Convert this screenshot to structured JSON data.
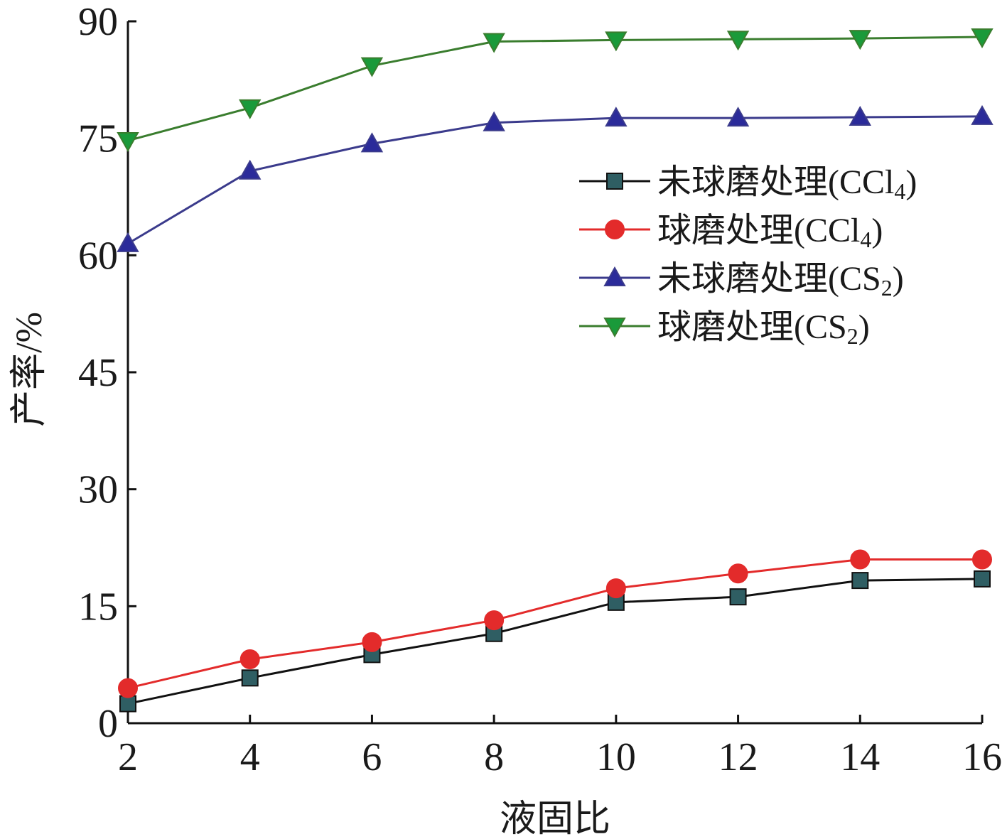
{
  "chart_data": {
    "type": "line",
    "xlabel": "液固比",
    "ylabel": "产率/%",
    "xlim": [
      2,
      16
    ],
    "ylim": [
      0,
      90
    ],
    "x_ticks": [
      "2",
      "4",
      "6",
      "8",
      "10",
      "12",
      "14",
      "16"
    ],
    "y_ticks": [
      "0",
      "15",
      "30",
      "45",
      "60",
      "75",
      "90"
    ],
    "x": [
      2,
      4,
      6,
      8,
      10,
      12,
      14,
      16
    ],
    "grid": false,
    "legend_position": "top-right",
    "series": [
      {
        "name": "未球磨处理(CCl",
        "subscript": "4",
        "suffix": ")",
        "marker": "square",
        "color": "#111111",
        "marker_color": "#2f5e63",
        "values": [
          2.5,
          5.8,
          8.8,
          11.5,
          15.5,
          16.2,
          18.3,
          18.5
        ]
      },
      {
        "name": "球磨处理(CCl",
        "subscript": "4",
        "suffix": ")",
        "marker": "circle",
        "color": "#e32b2b",
        "marker_color": "#e32b2b",
        "values": [
          4.5,
          8.2,
          10.4,
          13.2,
          17.3,
          19.2,
          21.0,
          21.0
        ]
      },
      {
        "name": "未球磨处理(CS",
        "subscript": "2",
        "suffix": ")",
        "marker": "triangle-up",
        "color": "#3b3b8c",
        "marker_color": "#2b2b9a",
        "values": [
          61.5,
          70.8,
          74.3,
          77.0,
          77.6,
          77.6,
          77.7,
          77.8
        ]
      },
      {
        "name": "球磨处理(CS",
        "subscript": "2",
        "suffix": ")",
        "marker": "triangle-down",
        "color": "#3a7d2e",
        "marker_color": "#1a9a3a",
        "values": [
          74.7,
          78.9,
          84.3,
          87.4,
          87.6,
          87.7,
          87.8,
          88.0
        ]
      }
    ]
  }
}
